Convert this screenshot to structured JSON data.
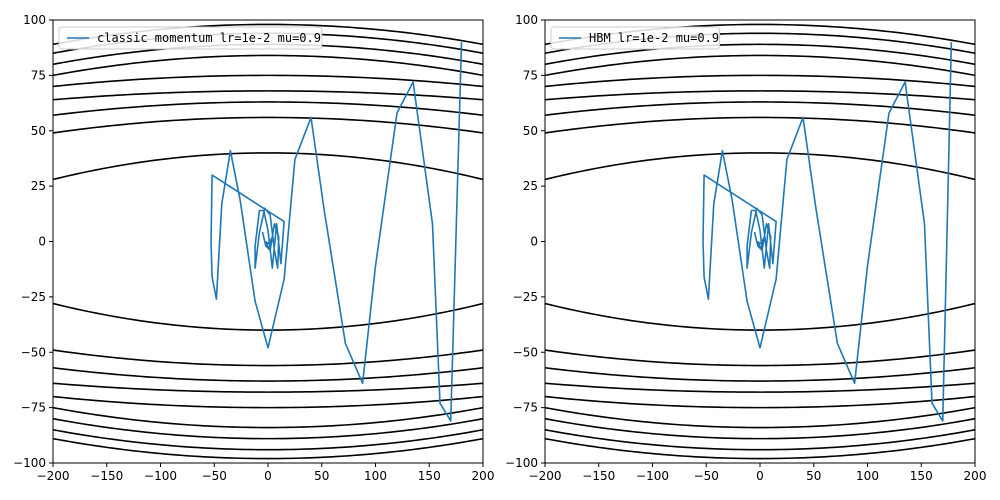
{
  "chart_data": [
    {
      "type": "line",
      "legend": {
        "label": "classic momentum lr=1e-2 mu=0.9",
        "placement": "top-left"
      },
      "xlim": [
        -200,
        200
      ],
      "ylim": [
        -100,
        100
      ],
      "xticks": [
        -200,
        -150,
        -100,
        -50,
        0,
        50,
        100,
        150,
        200
      ],
      "yticks": [
        -100,
        -75,
        -50,
        -25,
        0,
        25,
        50,
        75,
        100
      ],
      "series_color": "#1f77b4",
      "contour_color": "#000000",
      "contour_levels": [
        28,
        40,
        49,
        57,
        64,
        70,
        75,
        80,
        85
      ],
      "contour_y_at_x0": [
        40,
        56,
        63,
        68,
        75,
        84,
        89,
        94,
        98
      ],
      "contour_y_at_x200": [
        28,
        49,
        57,
        64,
        70,
        75,
        80,
        85,
        89
      ],
      "series": [
        {
          "x": [
            180,
            170,
            160,
            153,
            135,
            120,
            100,
            88,
            72,
            52,
            40,
            25,
            15,
            0,
            -12,
            -26,
            -35,
            -43,
            -48,
            -52,
            -53,
            -52
          ],
          "y": [
            90,
            -81,
            -73,
            8,
            72,
            58,
            -11,
            -64,
            -46,
            15,
            56,
            37,
            -17,
            -48,
            -27,
            19,
            41,
            17,
            -26,
            -16,
            0,
            30
          ]
        }
      ],
      "inner_spiral": {
        "x": [
          15,
          12,
          8,
          4,
          0,
          -4,
          -8,
          -12,
          -12,
          -8,
          -3,
          2,
          6,
          9,
          10,
          6,
          2,
          -2,
          -5,
          -3,
          1,
          4,
          3,
          0,
          -2
        ],
        "y": [
          9,
          -10,
          8,
          -12,
          5,
          14,
          14,
          -2,
          -12,
          4,
          15,
          12,
          -4,
          -12,
          2,
          8,
          -4,
          -2,
          4,
          0,
          -3,
          2,
          1,
          -1,
          0
        ]
      }
    },
    {
      "type": "line",
      "legend": {
        "label": "HBM lr=1e-2 mu=0.9",
        "placement": "top-left"
      },
      "xlim": [
        -200,
        200
      ],
      "ylim": [
        -100,
        100
      ],
      "xticks": [
        -200,
        -150,
        -100,
        -50,
        0,
        50,
        100,
        150,
        200
      ],
      "yticks": [
        -100,
        -75,
        -50,
        -25,
        0,
        25,
        50,
        75,
        100
      ],
      "series_color": "#1f77b4",
      "contour_color": "#000000",
      "contour_levels": [
        28,
        40,
        49,
        57,
        64,
        70,
        75,
        80,
        85
      ],
      "contour_y_at_x0": [
        40,
        56,
        63,
        68,
        75,
        84,
        89,
        94,
        98
      ],
      "contour_y_at_x200": [
        28,
        49,
        57,
        64,
        70,
        75,
        80,
        85,
        89
      ],
      "series": [
        {
          "x": [
            178,
            170,
            160,
            153,
            135,
            120,
            100,
            88,
            72,
            52,
            40,
            25,
            15,
            0,
            -12,
            -26,
            -35,
            -43,
            -48,
            -52,
            -53,
            -52
          ],
          "y": [
            90,
            -81,
            -73,
            8,
            72,
            58,
            -11,
            -64,
            -46,
            15,
            56,
            37,
            -17,
            -48,
            -27,
            19,
            41,
            17,
            -26,
            -16,
            0,
            30
          ]
        }
      ],
      "inner_spiral": {
        "x": [
          15,
          12,
          8,
          4,
          0,
          -4,
          -8,
          -12,
          -12,
          -8,
          -3,
          2,
          6,
          9,
          10,
          6,
          2,
          -2,
          -5,
          -3,
          1,
          4,
          3,
          0,
          -2
        ],
        "y": [
          9,
          -10,
          8,
          -12,
          5,
          14,
          14,
          -2,
          -12,
          4,
          15,
          12,
          -4,
          -12,
          2,
          8,
          -4,
          -2,
          4,
          0,
          -3,
          2,
          1,
          -1,
          0
        ]
      }
    }
  ]
}
